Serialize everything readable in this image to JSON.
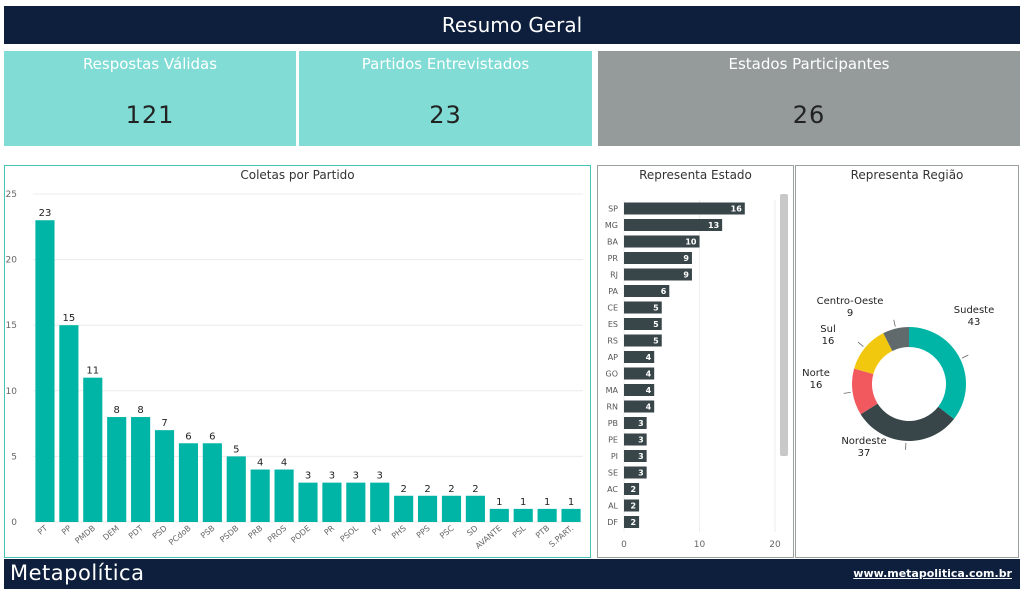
{
  "header": {
    "title": "Resumo Geral"
  },
  "cards": [
    {
      "label": "Respostas Válidas",
      "value": "121"
    },
    {
      "label": "Partidos Entrevistados",
      "value": "23"
    },
    {
      "label": "Estados Participantes",
      "value": "26"
    }
  ],
  "footer": {
    "logo": "Metapolítica",
    "url": "www.metapolitica.com.br"
  },
  "colors": {
    "header": "#0d1f3c",
    "teal": "#00b5a6",
    "card_teal": "#80dcd4",
    "card_grey": "#959b9b",
    "dark_bar": "#38464a"
  },
  "chart_data": [
    {
      "type": "bar",
      "title": "Coletas por Partido",
      "categories": [
        "PT",
        "PP",
        "PMDB",
        "DEM",
        "PDT",
        "PSD",
        "PCdoB",
        "PSB",
        "PSDB",
        "PRB",
        "PROS",
        "PODE",
        "PR",
        "PSOL",
        "PV",
        "PHS",
        "PPS",
        "PSC",
        "SD",
        "AVANTE",
        "PSL",
        "PTB",
        "S.PART."
      ],
      "values": [
        23,
        15,
        11,
        8,
        8,
        7,
        6,
        6,
        5,
        4,
        4,
        3,
        3,
        3,
        3,
        2,
        2,
        2,
        2,
        1,
        1,
        1,
        1
      ],
      "ylim": [
        0,
        25
      ],
      "yticks": [
        0,
        5,
        10,
        15,
        20,
        25
      ],
      "color": "#00b5a6"
    },
    {
      "type": "bar",
      "orientation": "horizontal",
      "title": "Representa Estado",
      "categories": [
        "SP",
        "MG",
        "BA",
        "PR",
        "RJ",
        "PA",
        "CE",
        "ES",
        "RS",
        "AP",
        "GO",
        "MA",
        "RN",
        "PB",
        "PE",
        "PI",
        "SE",
        "AC",
        "AL",
        "DF"
      ],
      "values": [
        16,
        13,
        10,
        9,
        9,
        6,
        5,
        5,
        5,
        4,
        4,
        4,
        4,
        3,
        3,
        3,
        3,
        2,
        2,
        2
      ],
      "xlim": [
        0,
        20
      ],
      "xticks": [
        0,
        10,
        20
      ],
      "color": "#38464a"
    },
    {
      "type": "pie",
      "donut": true,
      "title": "Representa Região",
      "labels": [
        "Sudeste",
        "Nordeste",
        "Norte",
        "Sul",
        "Centro-Oeste"
      ],
      "values": [
        43,
        37,
        16,
        16,
        9
      ],
      "colors": [
        "#00b5a6",
        "#38464a",
        "#f2595f",
        "#f2c80f",
        "#606a6c"
      ]
    }
  ]
}
